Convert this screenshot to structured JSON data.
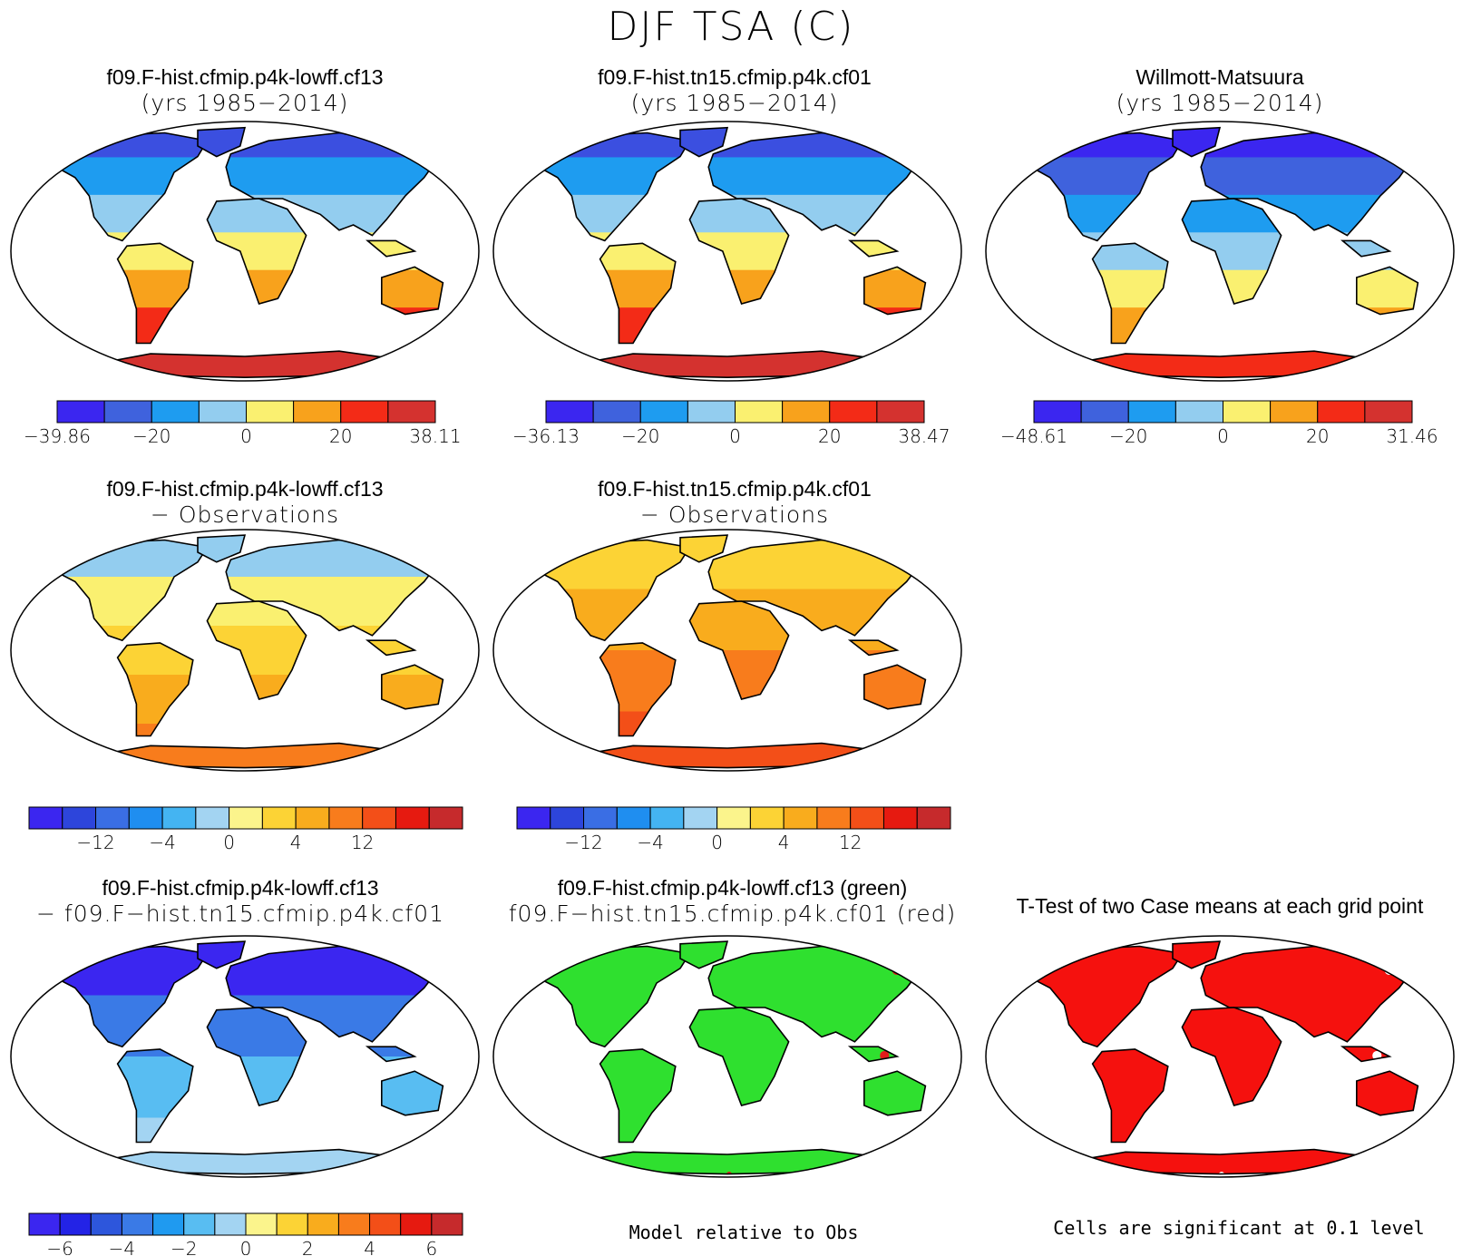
{
  "title": "DJF TSA (C)",
  "panels": [
    {
      "id": "p1",
      "line1": "f09.F-hist.cfmip.p4k-lowff.cf13",
      "line2": "(yrs 1985−2014)",
      "style": "climo_model"
    },
    {
      "id": "p2",
      "line1": "f09.F-hist.tn15.cfmip.p4k.cf01",
      "line2": "(yrs 1985−2014)",
      "style": "climo_model2"
    },
    {
      "id": "p3",
      "line1": "Willmott-Matsuura",
      "line2": "(yrs 1985−2014)",
      "style": "climo_obs"
    },
    {
      "id": "p4",
      "line1": "f09.F-hist.cfmip.p4k-lowff.cf13",
      "line2": "− Observations",
      "style": "diff1"
    },
    {
      "id": "p5",
      "line1": "f09.F-hist.tn15.cfmip.p4k.cf01",
      "line2": "− Observations",
      "style": "diff2"
    },
    {
      "id": "p6",
      "line1": "f09.F-hist.cfmip.p4k-lowff.cf13",
      "line2": "− f09.F−hist.tn15.cfmip.p4k.cf01",
      "style": "diffmodels"
    },
    {
      "id": "p7",
      "line1": "f09.F-hist.cfmip.p4k-lowff.cf13 (green)",
      "line2": "f09.F−hist.tn15.cfmip.p4k.cf01 (red)",
      "style": "relative"
    },
    {
      "id": "p8",
      "line1": "T-Test of two Case means at each grid point",
      "line2": "",
      "style": "ttest"
    }
  ],
  "colorbars": {
    "cb1": {
      "colors": [
        "#3b26f0",
        "#3f62dd",
        "#1e9cf0",
        "#93cdef",
        "#faf070",
        "#f8a21c",
        "#f32b17",
        "#d4322f"
      ],
      "labels": [
        "−39.86",
        "−20",
        "0",
        "20",
        "38.11"
      ],
      "label_idx": [
        0,
        2,
        4,
        6,
        8
      ]
    },
    "cb2": {
      "colors": [
        "#3b26f0",
        "#3f62dd",
        "#1e9cf0",
        "#93cdef",
        "#faf070",
        "#f8a21c",
        "#f32b17",
        "#d4322f"
      ],
      "labels": [
        "−36.13",
        "−20",
        "0",
        "20",
        "38.47"
      ],
      "label_idx": [
        0,
        2,
        4,
        6,
        8
      ]
    },
    "cb3": {
      "colors": [
        "#3b26f0",
        "#3f62dd",
        "#1e9cf0",
        "#93cdef",
        "#faf070",
        "#f8a21c",
        "#f32b17",
        "#d4322f"
      ],
      "labels": [
        "−48.61",
        "−20",
        "0",
        "20",
        "31.46"
      ],
      "label_idx": [
        0,
        2,
        4,
        6,
        8
      ]
    },
    "cb4": {
      "colors": [
        "#3b26f0",
        "#2d45db",
        "#3a6ee4",
        "#1f8ef0",
        "#44b4f2",
        "#a3d4f2",
        "#fbf48c",
        "#fcd335",
        "#f9ac1d",
        "#f87c1c",
        "#f34f18",
        "#e61a10",
        "#c62a2c"
      ],
      "labels": [
        "−12",
        "−4",
        "0",
        "4",
        "12"
      ],
      "label_idx": [
        2,
        4,
        6,
        8,
        10
      ]
    },
    "cb5": {
      "colors": [
        "#3b26f0",
        "#2d45db",
        "#3a6ee4",
        "#1f8ef0",
        "#44b4f2",
        "#a3d4f2",
        "#fbf48c",
        "#fcd335",
        "#f9ac1d",
        "#f87c1c",
        "#f34f18",
        "#e61a10",
        "#c62a2c"
      ],
      "labels": [
        "−12",
        "−4",
        "0",
        "4",
        "12"
      ],
      "label_idx": [
        2,
        4,
        6,
        8,
        10
      ]
    },
    "cb6": {
      "colors": [
        "#3b26f0",
        "#2323e6",
        "#2d56dc",
        "#3a7ae6",
        "#1f9af0",
        "#58bdf2",
        "#a3d4f2",
        "#fbf48c",
        "#fcd335",
        "#f9ac1d",
        "#f87c1c",
        "#f34f18",
        "#e61a10",
        "#c62a2c"
      ],
      "labels": [
        "−6",
        "−4",
        "−2",
        "0",
        "2",
        "4",
        "6"
      ],
      "label_idx": [
        1,
        3,
        5,
        7,
        9,
        11,
        13
      ]
    }
  },
  "notes": {
    "relative": "Model relative to Obs",
    "ttest": "Cells are significant at 0.1 level"
  },
  "land_fill_colors": {
    "climo_model": "#f07c1c",
    "climo_model2": "#f07c1c",
    "climo_obs": "#f5901c",
    "diff1": "#f9b12a",
    "diff2": "#f89a22",
    "diffmodels": "#6aa8ec",
    "relative": "#2fe02f",
    "ttest": "#f5110e"
  }
}
